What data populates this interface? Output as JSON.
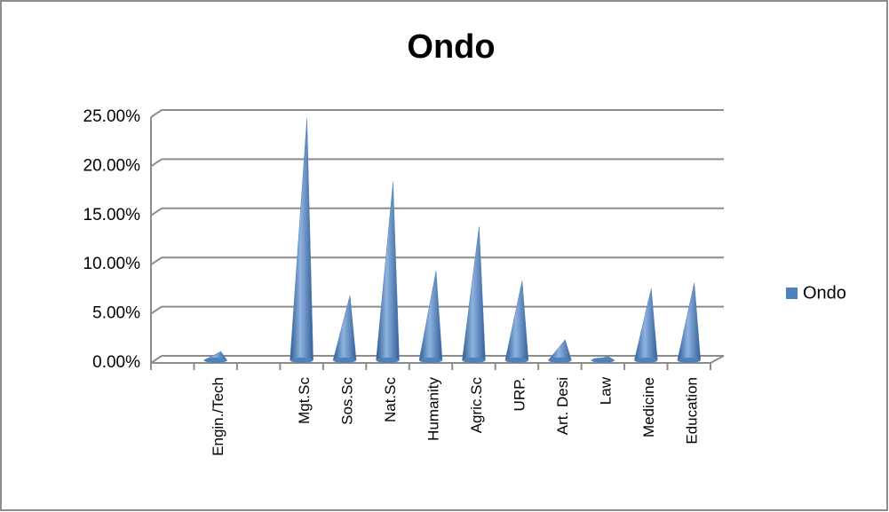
{
  "chart_data": {
    "type": "cone",
    "title": "Ondo",
    "categories": [
      null,
      "Engin./Tech",
      null,
      "Mgt.Sc",
      "Sos.Sc",
      "Nat.Sc",
      "Humanity",
      "Agric.Sc",
      "URP.",
      "Art. Desi",
      "Law",
      "Medicine",
      "Education"
    ],
    "series": [
      {
        "name": "Ondo",
        "color": "#4f81bd",
        "values": [
          null,
          0.8,
          null,
          24.5,
          6.5,
          18,
          9,
          13.5,
          8,
          2,
          0.3,
          7.2,
          7.8
        ]
      }
    ],
    "ylim": [
      0,
      25
    ],
    "yticks": [
      {
        "value": 0,
        "label": "0.00%"
      },
      {
        "value": 5,
        "label": "5.00%"
      },
      {
        "value": 10,
        "label": "10.00%"
      },
      {
        "value": 15,
        "label": "15.00%"
      },
      {
        "value": 20,
        "label": "20.00%"
      },
      {
        "value": 25,
        "label": "25.00%"
      }
    ],
    "grid": true,
    "legend": "right"
  }
}
